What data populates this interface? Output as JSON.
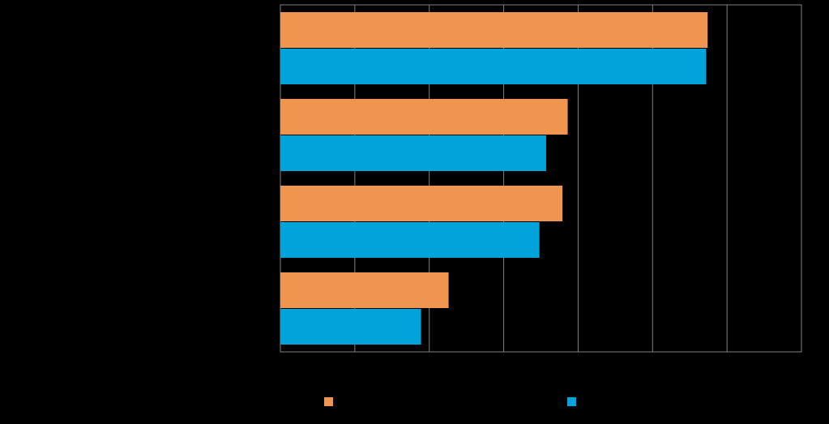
{
  "chart_data": {
    "type": "hbar",
    "categories": [
      null,
      null,
      null,
      null
    ],
    "series": [
      {
        "color": "#f0954f",
        "values": [
          57.4,
          38.6,
          37.9,
          22.6
        ]
      },
      {
        "color": "#00a3da",
        "values": [
          57.2,
          35.7,
          34.8,
          18.9
        ]
      }
    ],
    "xlim": [
      0,
      70
    ],
    "xticks": [
      0,
      10,
      20,
      30,
      40,
      50,
      60,
      70
    ],
    "grid": true
  }
}
